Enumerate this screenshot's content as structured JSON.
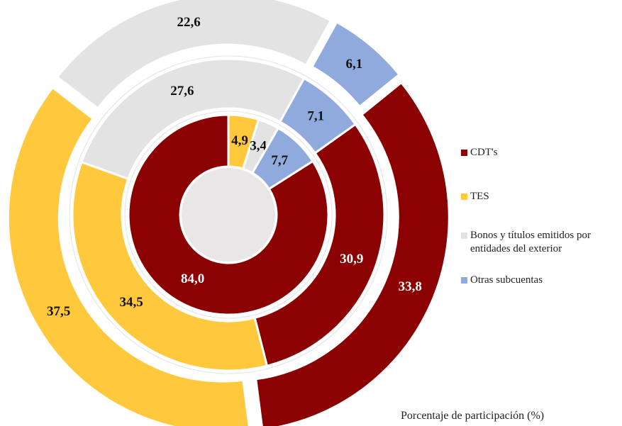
{
  "chart_data": {
    "type": "donut",
    "categories": [
      "CDT's",
      "TES",
      "Bonos y títulos emitidos por entidades del exterior",
      "Otras subcuentas"
    ],
    "colors": [
      "#8b0000",
      "#ffc83d",
      "#e4e3e3",
      "#8faadc"
    ],
    "series": [
      {
        "values": [
          84.0,
          4.9,
          3.4,
          7.7
        ],
        "value_labels": [
          "84,0",
          "4,9",
          "3,4",
          "7,7"
        ]
      },
      {
        "values": [
          30.9,
          34.5,
          27.6,
          7.1
        ],
        "value_labels": [
          "30,9",
          "34,5",
          "27,6",
          "7,1"
        ]
      },
      {
        "values": [
          33.8,
          37.5,
          22.6,
          6.1
        ],
        "value_labels": [
          "33,8",
          "37,5",
          "22,6",
          "6,1"
        ]
      }
    ],
    "note": "Porcentaje de participación (%)"
  }
}
